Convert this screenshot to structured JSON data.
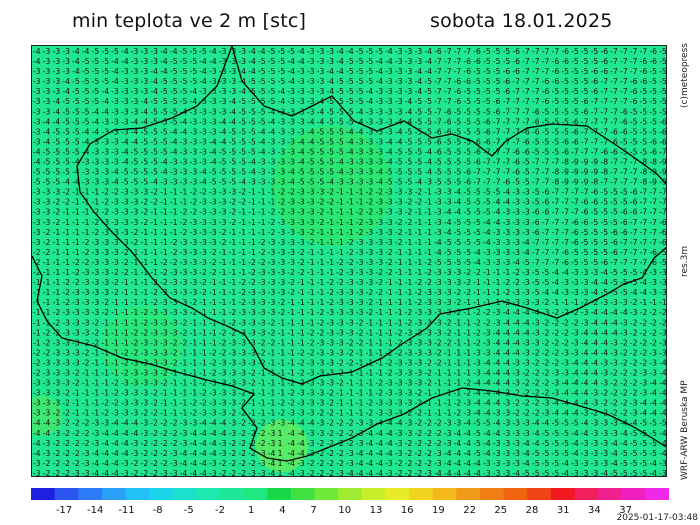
{
  "header": {
    "title_left": "min teplota ve 2 m [stc]",
    "title_right": "sobota 18.01.2025"
  },
  "side_labels": {
    "copyright": "(c)meteopress",
    "resolution": "res.3m",
    "model": "WRF-ARW Beruska MP"
  },
  "colorbar": {
    "ticks": [
      "-17",
      "-14",
      "-11",
      "-8",
      "-5",
      "-2",
      "1",
      "4",
      "7",
      "10",
      "13",
      "16",
      "19",
      "22",
      "25",
      "28",
      "31",
      "34",
      "37"
    ],
    "colors": [
      "#2020e0",
      "#2a55f2",
      "#2c7af6",
      "#2aa0f8",
      "#22c0f4",
      "#1ad4ea",
      "#1ce0cc",
      "#1de8b0",
      "#1ee898",
      "#20e880",
      "#18d848",
      "#40e040",
      "#70e838",
      "#a0ec30",
      "#c8ee2c",
      "#e8ec28",
      "#f0d420",
      "#f4b81c",
      "#f09c18",
      "#f08014",
      "#f06410",
      "#f04414",
      "#f01a20",
      "#f0205a",
      "#f0208e",
      "#f020c0",
      "#f028e8"
    ]
  },
  "map": {
    "background": "#1fe890",
    "text_color": "#111111",
    "border_color": "#000000",
    "values_cols": 65,
    "values_rows": 43,
    "anomaly": "1"
  },
  "footer": {
    "timestamp": "2025-01-17-03:48"
  }
}
